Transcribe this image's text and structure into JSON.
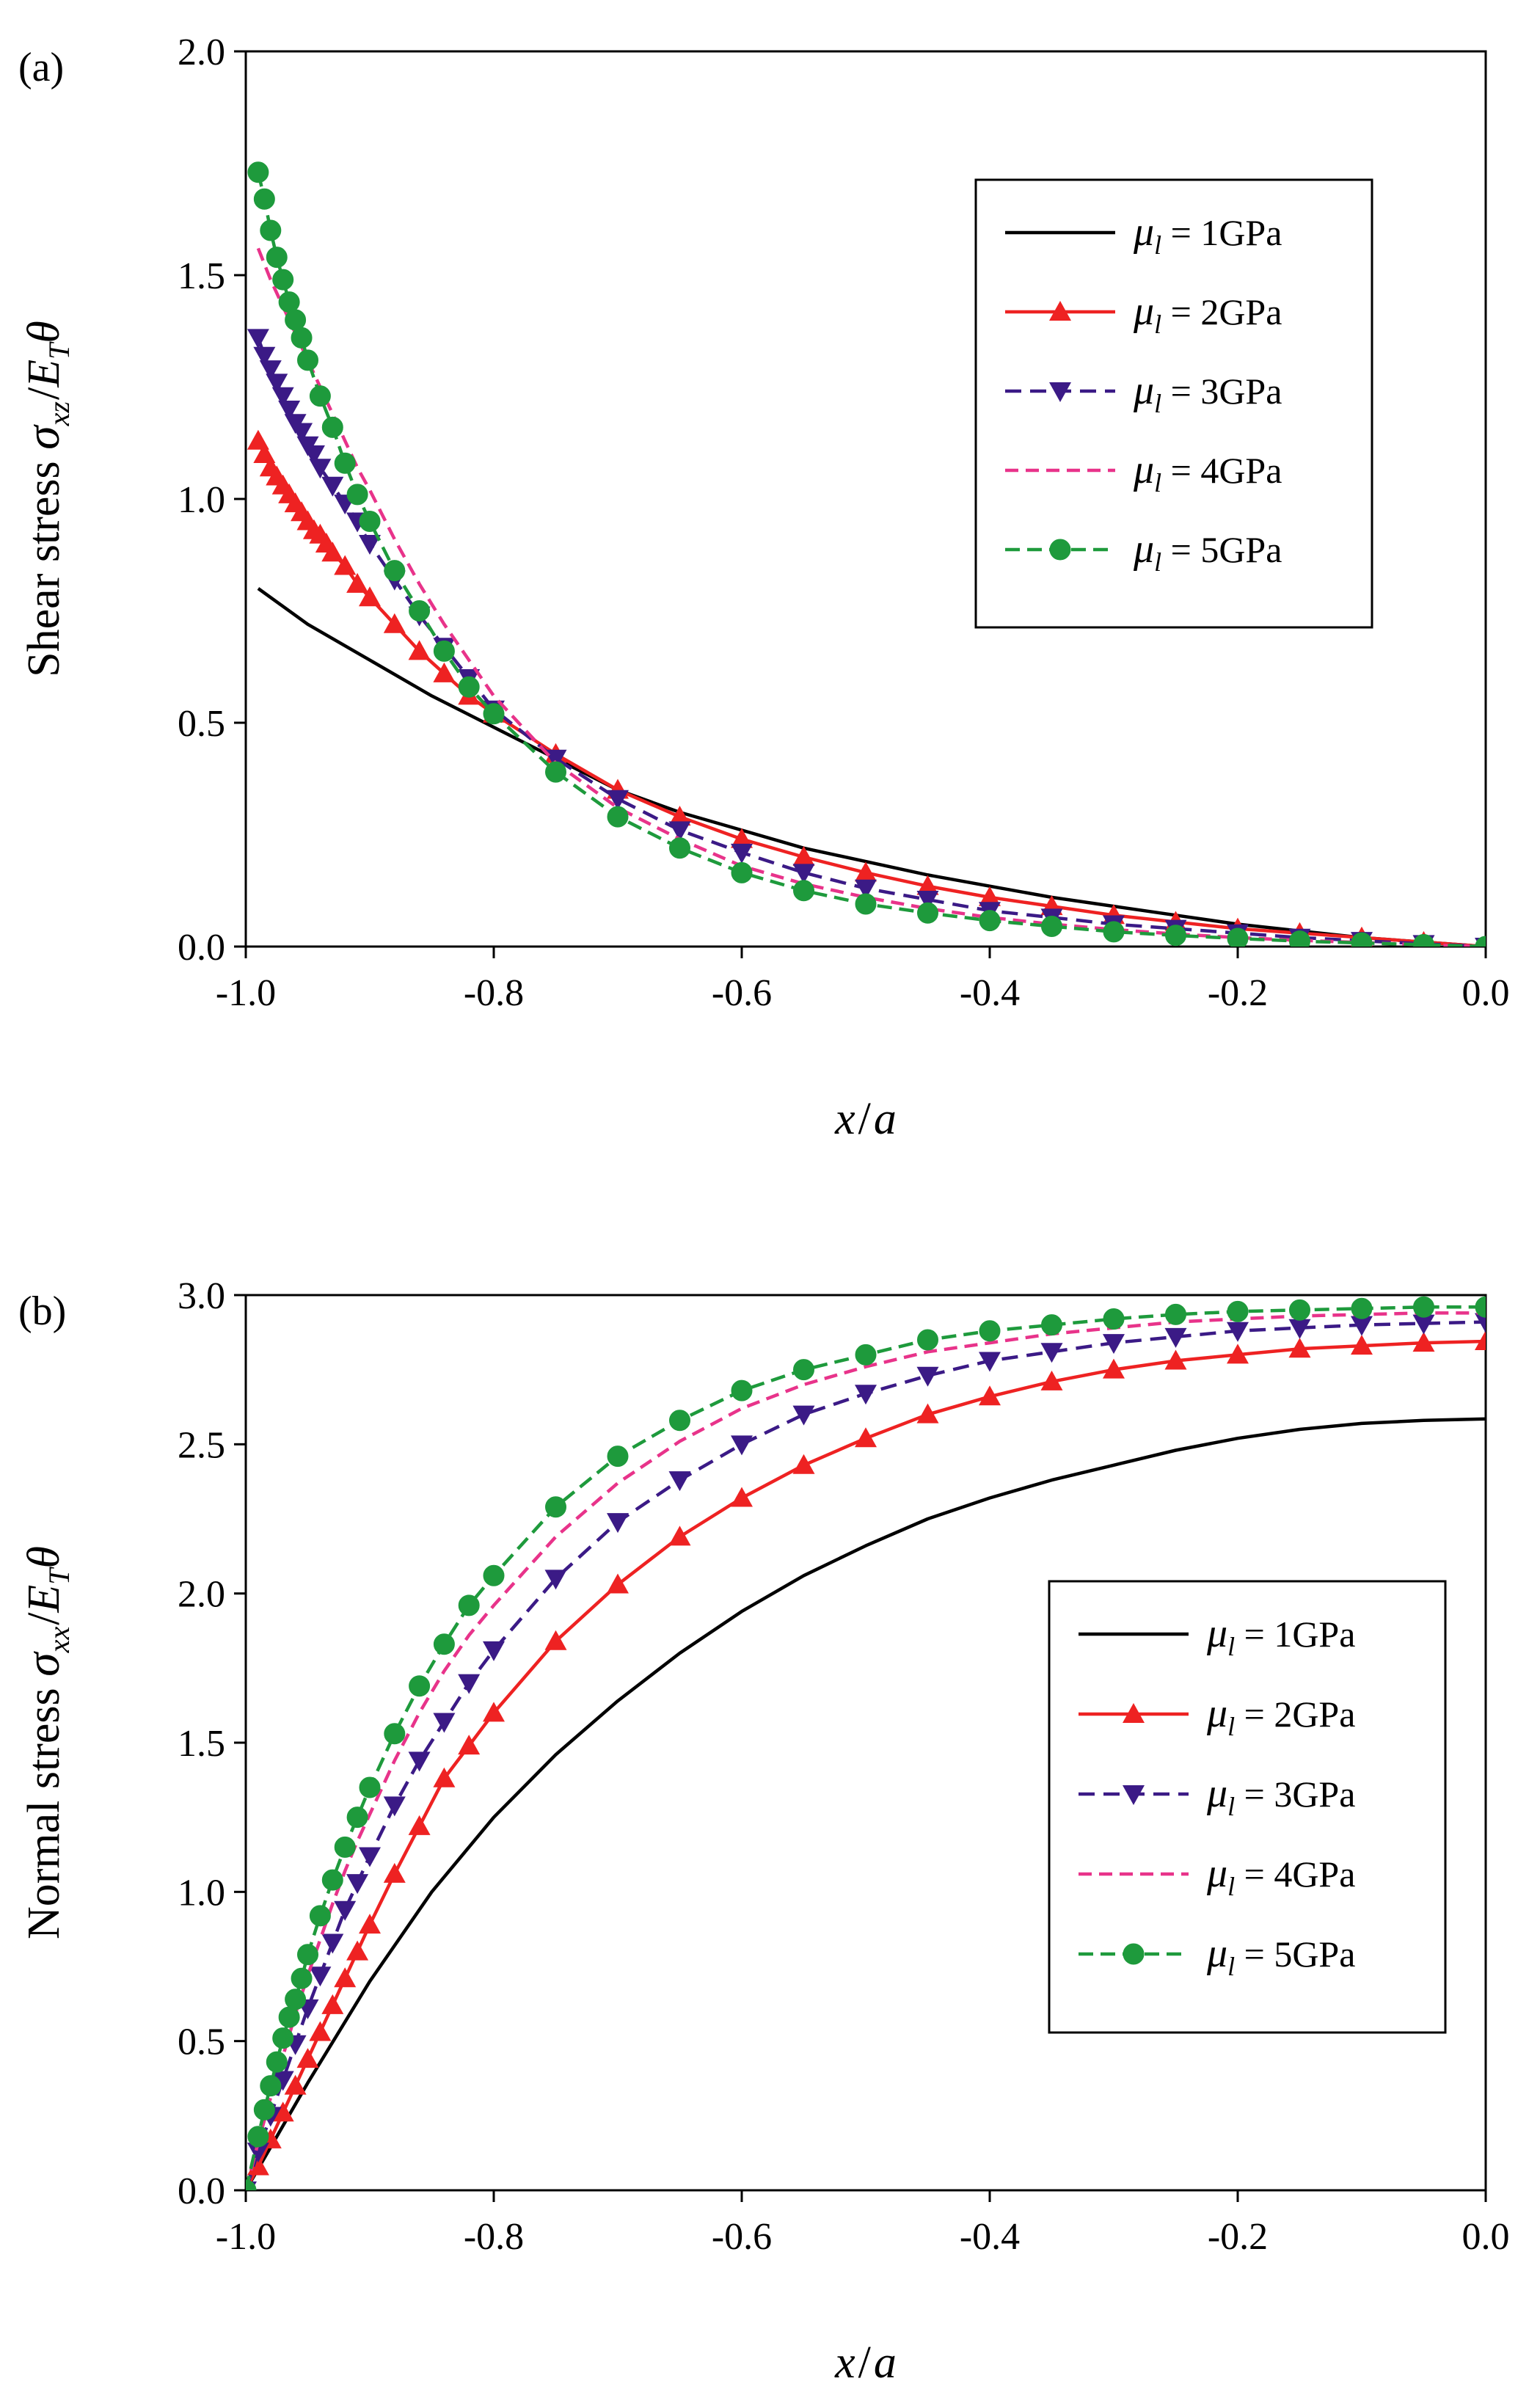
{
  "chart_data": [
    {
      "type": "line",
      "panel_label": "(a)",
      "xlabel": {
        "var": "x",
        "sep": "/",
        "den": "a"
      },
      "ylabel": {
        "prefix": "Shear stress ",
        "sigma": "σ",
        "sigma_sub": "xz",
        "slash": "/",
        "E": "E",
        "E_sub": "T",
        "theta": "θ"
      },
      "xlim": [
        -1.0,
        0.0
      ],
      "ylim": [
        0.0,
        2.0
      ],
      "x_ticks": [
        -1.0,
        -0.8,
        -0.6,
        -0.4,
        -0.2,
        0.0
      ],
      "x_tick_labels": [
        "-1.0",
        "-0.8",
        "-0.6",
        "-0.4",
        "-0.2",
        "0.0"
      ],
      "y_ticks": [
        0.0,
        0.5,
        1.0,
        1.5,
        2.0
      ],
      "y_tick_labels": [
        "0.0",
        "0.5",
        "1.0",
        "1.5",
        "2.0"
      ],
      "legend_position": "top-right",
      "series": [
        {
          "name": "1GPa",
          "color": "#000000",
          "dash": "",
          "marker": "none",
          "x": [
            -0.99,
            -0.95,
            -0.9,
            -0.85,
            -0.8,
            -0.75,
            -0.7,
            -0.65,
            -0.6,
            -0.55,
            -0.5,
            -0.45,
            -0.4,
            -0.35,
            -0.3,
            -0.25,
            -0.2,
            -0.15,
            -0.1,
            -0.05,
            0.0
          ],
          "values": [
            0.8,
            0.72,
            0.64,
            0.56,
            0.49,
            0.42,
            0.35,
            0.3,
            0.26,
            0.22,
            0.19,
            0.16,
            0.135,
            0.11,
            0.09,
            0.07,
            0.05,
            0.035,
            0.02,
            0.01,
            0.0
          ]
        },
        {
          "name": "2GPa",
          "color": "#ee2222",
          "dash": "",
          "marker": "triangle-up",
          "x": [
            -0.99,
            -0.985,
            -0.98,
            -0.975,
            -0.97,
            -0.965,
            -0.96,
            -0.955,
            -0.95,
            -0.945,
            -0.94,
            -0.935,
            -0.93,
            -0.92,
            -0.91,
            -0.9,
            -0.88,
            -0.86,
            -0.84,
            -0.82,
            -0.8,
            -0.75,
            -0.7,
            -0.65,
            -0.6,
            -0.55,
            -0.5,
            -0.45,
            -0.4,
            -0.35,
            -0.3,
            -0.25,
            -0.2,
            -0.15,
            -0.1,
            -0.05,
            0.0
          ],
          "values": [
            1.13,
            1.1,
            1.07,
            1.05,
            1.03,
            1.01,
            0.99,
            0.97,
            0.95,
            0.93,
            0.92,
            0.9,
            0.88,
            0.85,
            0.81,
            0.78,
            0.72,
            0.66,
            0.61,
            0.56,
            0.52,
            0.43,
            0.35,
            0.29,
            0.24,
            0.2,
            0.165,
            0.135,
            0.11,
            0.09,
            0.07,
            0.055,
            0.04,
            0.03,
            0.02,
            0.01,
            0.0
          ]
        },
        {
          "name": "3GPa",
          "color": "#3b1a86",
          "dash": "22,12",
          "marker": "triangle-down",
          "x": [
            -0.99,
            -0.985,
            -0.98,
            -0.975,
            -0.97,
            -0.965,
            -0.96,
            -0.955,
            -0.95,
            -0.945,
            -0.94,
            -0.93,
            -0.92,
            -0.91,
            -0.9,
            -0.88,
            -0.86,
            -0.84,
            -0.82,
            -0.8,
            -0.75,
            -0.7,
            -0.65,
            -0.6,
            -0.55,
            -0.5,
            -0.45,
            -0.4,
            -0.35,
            -0.3,
            -0.25,
            -0.2,
            -0.15,
            -0.1,
            -0.05,
            0.0
          ],
          "values": [
            1.36,
            1.32,
            1.29,
            1.26,
            1.23,
            1.2,
            1.17,
            1.15,
            1.12,
            1.1,
            1.07,
            1.03,
            0.99,
            0.95,
            0.9,
            0.82,
            0.74,
            0.67,
            0.6,
            0.53,
            0.42,
            0.33,
            0.26,
            0.21,
            0.165,
            0.13,
            0.105,
            0.08,
            0.065,
            0.05,
            0.04,
            0.03,
            0.02,
            0.013,
            0.006,
            0.0
          ]
        },
        {
          "name": "4GPa",
          "color": "#e8338a",
          "dash": "18,10",
          "marker": "none",
          "x": [
            -0.99,
            -0.98,
            -0.97,
            -0.96,
            -0.95,
            -0.94,
            -0.93,
            -0.92,
            -0.91,
            -0.9,
            -0.88,
            -0.86,
            -0.84,
            -0.82,
            -0.8,
            -0.75,
            -0.7,
            -0.65,
            -0.6,
            -0.55,
            -0.5,
            -0.45,
            -0.4,
            -0.35,
            -0.3,
            -0.25,
            -0.2,
            -0.15,
            -0.1,
            -0.05,
            0.0
          ],
          "values": [
            1.56,
            1.49,
            1.43,
            1.37,
            1.31,
            1.25,
            1.19,
            1.13,
            1.07,
            1.02,
            0.91,
            0.81,
            0.72,
            0.64,
            0.56,
            0.41,
            0.31,
            0.24,
            0.18,
            0.14,
            0.11,
            0.085,
            0.065,
            0.05,
            0.038,
            0.028,
            0.02,
            0.014,
            0.009,
            0.004,
            0.0
          ]
        },
        {
          "name": "5GPa",
          "color": "#1e9a3c",
          "dash": "20,10",
          "marker": "circle",
          "x": [
            -0.99,
            -0.985,
            -0.98,
            -0.975,
            -0.97,
            -0.965,
            -0.96,
            -0.955,
            -0.95,
            -0.94,
            -0.93,
            -0.92,
            -0.91,
            -0.9,
            -0.88,
            -0.86,
            -0.84,
            -0.82,
            -0.8,
            -0.75,
            -0.7,
            -0.65,
            -0.6,
            -0.55,
            -0.5,
            -0.45,
            -0.4,
            -0.35,
            -0.3,
            -0.25,
            -0.2,
            -0.15,
            -0.1,
            -0.05,
            0.0
          ],
          "values": [
            1.73,
            1.67,
            1.6,
            1.54,
            1.49,
            1.44,
            1.4,
            1.36,
            1.31,
            1.23,
            1.16,
            1.08,
            1.01,
            0.95,
            0.84,
            0.75,
            0.66,
            0.58,
            0.52,
            0.39,
            0.29,
            0.22,
            0.165,
            0.125,
            0.095,
            0.075,
            0.058,
            0.045,
            0.033,
            0.025,
            0.018,
            0.012,
            0.008,
            0.004,
            0.0
          ]
        }
      ]
    },
    {
      "type": "line",
      "panel_label": "(b)",
      "xlabel": {
        "var": "x",
        "sep": "/",
        "den": "a"
      },
      "ylabel": {
        "prefix": "Normal stress ",
        "sigma": "σ",
        "sigma_sub": "xx",
        "slash": "/",
        "E": "E",
        "E_sub": "T",
        "theta": "θ"
      },
      "xlim": [
        -1.0,
        0.0
      ],
      "ylim": [
        0.0,
        3.0
      ],
      "x_ticks": [
        -1.0,
        -0.8,
        -0.6,
        -0.4,
        -0.2,
        0.0
      ],
      "x_tick_labels": [
        "-1.0",
        "-0.8",
        "-0.6",
        "-0.4",
        "-0.2",
        "0.0"
      ],
      "y_ticks": [
        0.0,
        0.5,
        1.0,
        1.5,
        2.0,
        2.5,
        3.0
      ],
      "y_tick_labels": [
        "0.0",
        "0.5",
        "1.0",
        "1.5",
        "2.0",
        "2.5",
        "3.0"
      ],
      "legend_position": "center-right",
      "series": [
        {
          "name": "1GPa",
          "color": "#000000",
          "dash": "",
          "marker": "none",
          "x": [
            -1.0,
            -0.95,
            -0.9,
            -0.85,
            -0.8,
            -0.75,
            -0.7,
            -0.65,
            -0.6,
            -0.55,
            -0.5,
            -0.45,
            -0.4,
            -0.35,
            -0.3,
            -0.25,
            -0.2,
            -0.15,
            -0.1,
            -0.05,
            0.0
          ],
          "values": [
            0.0,
            0.36,
            0.7,
            1.0,
            1.25,
            1.46,
            1.64,
            1.8,
            1.94,
            2.06,
            2.16,
            2.25,
            2.32,
            2.38,
            2.43,
            2.48,
            2.52,
            2.55,
            2.57,
            2.58,
            2.585
          ]
        },
        {
          "name": "2GPa",
          "color": "#ee2222",
          "dash": "",
          "marker": "triangle-up",
          "x": [
            -1.0,
            -0.99,
            -0.98,
            -0.97,
            -0.96,
            -0.95,
            -0.94,
            -0.93,
            -0.92,
            -0.91,
            -0.9,
            -0.88,
            -0.86,
            -0.84,
            -0.82,
            -0.8,
            -0.75,
            -0.7,
            -0.65,
            -0.6,
            -0.55,
            -0.5,
            -0.45,
            -0.4,
            -0.35,
            -0.3,
            -0.25,
            -0.2,
            -0.15,
            -0.1,
            -0.05,
            0.0
          ],
          "values": [
            0.0,
            0.08,
            0.17,
            0.26,
            0.35,
            0.44,
            0.53,
            0.62,
            0.71,
            0.8,
            0.89,
            1.06,
            1.22,
            1.38,
            1.49,
            1.6,
            1.84,
            2.03,
            2.19,
            2.32,
            2.43,
            2.52,
            2.6,
            2.66,
            2.71,
            2.75,
            2.78,
            2.8,
            2.82,
            2.83,
            2.84,
            2.845
          ]
        },
        {
          "name": "3GPa",
          "color": "#3b1a86",
          "dash": "22,12",
          "marker": "triangle-down",
          "x": [
            -1.0,
            -0.99,
            -0.98,
            -0.97,
            -0.96,
            -0.95,
            -0.94,
            -0.93,
            -0.92,
            -0.91,
            -0.9,
            -0.88,
            -0.86,
            -0.84,
            -0.82,
            -0.8,
            -0.75,
            -0.7,
            -0.65,
            -0.6,
            -0.55,
            -0.5,
            -0.45,
            -0.4,
            -0.35,
            -0.3,
            -0.25,
            -0.2,
            -0.15,
            -0.1,
            -0.05,
            0.0
          ],
          "values": [
            0.0,
            0.13,
            0.25,
            0.37,
            0.49,
            0.61,
            0.72,
            0.83,
            0.94,
            1.03,
            1.12,
            1.29,
            1.44,
            1.57,
            1.7,
            1.81,
            2.05,
            2.24,
            2.38,
            2.5,
            2.6,
            2.67,
            2.73,
            2.78,
            2.81,
            2.84,
            2.86,
            2.88,
            2.89,
            2.9,
            2.905,
            2.91
          ]
        },
        {
          "name": "4GPa",
          "color": "#e8338a",
          "dash": "18,10",
          "marker": "none",
          "x": [
            -1.0,
            -0.99,
            -0.98,
            -0.97,
            -0.96,
            -0.95,
            -0.94,
            -0.93,
            -0.92,
            -0.91,
            -0.9,
            -0.88,
            -0.86,
            -0.84,
            -0.82,
            -0.8,
            -0.75,
            -0.7,
            -0.65,
            -0.6,
            -0.55,
            -0.5,
            -0.45,
            -0.4,
            -0.35,
            -0.3,
            -0.25,
            -0.2,
            -0.15,
            -0.1,
            -0.05,
            0.0
          ],
          "values": [
            0.0,
            0.16,
            0.31,
            0.45,
            0.59,
            0.72,
            0.84,
            0.96,
            1.07,
            1.17,
            1.26,
            1.44,
            1.6,
            1.74,
            1.86,
            1.96,
            2.19,
            2.37,
            2.51,
            2.62,
            2.7,
            2.76,
            2.81,
            2.84,
            2.87,
            2.89,
            2.91,
            2.92,
            2.93,
            2.935,
            2.94,
            2.94
          ]
        },
        {
          "name": "5GPa",
          "color": "#1e9a3c",
          "dash": "20,10",
          "marker": "circle",
          "x": [
            -1.0,
            -0.99,
            -0.985,
            -0.98,
            -0.975,
            -0.97,
            -0.965,
            -0.96,
            -0.955,
            -0.95,
            -0.94,
            -0.93,
            -0.92,
            -0.91,
            -0.9,
            -0.88,
            -0.86,
            -0.84,
            -0.82,
            -0.8,
            -0.75,
            -0.7,
            -0.65,
            -0.6,
            -0.55,
            -0.5,
            -0.45,
            -0.4,
            -0.35,
            -0.3,
            -0.25,
            -0.2,
            -0.15,
            -0.1,
            -0.05,
            0.0
          ],
          "values": [
            0.0,
            0.18,
            0.27,
            0.35,
            0.43,
            0.51,
            0.58,
            0.64,
            0.71,
            0.79,
            0.92,
            1.04,
            1.15,
            1.25,
            1.35,
            1.53,
            1.69,
            1.83,
            1.96,
            2.06,
            2.29,
            2.46,
            2.58,
            2.68,
            2.75,
            2.8,
            2.85,
            2.88,
            2.9,
            2.92,
            2.935,
            2.945,
            2.95,
            2.955,
            2.96,
            2.96
          ]
        }
      ]
    }
  ],
  "legend_symbol": "μ",
  "legend_symbol_sub": "l",
  "legend_eq": " = "
}
